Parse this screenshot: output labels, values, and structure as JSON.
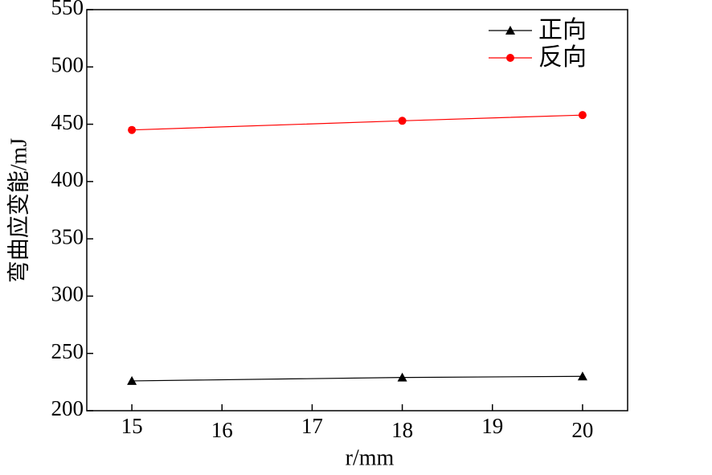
{
  "chart_data": {
    "type": "line",
    "xlabel": "r/mm",
    "ylabel": "弯曲应变能/mJ",
    "x": [
      15,
      18,
      20
    ],
    "series": [
      {
        "name": "正向",
        "color": "#000000",
        "marker": "triangle",
        "values": [
          226,
          229,
          230
        ]
      },
      {
        "name": "反向",
        "color": "#ff0000",
        "marker": "circle",
        "values": [
          445,
          453,
          458
        ]
      }
    ],
    "xlim": [
      14.5,
      20.5
    ],
    "xticks": [
      15,
      16,
      17,
      18,
      19,
      20
    ],
    "ylim": [
      200,
      550
    ],
    "yticks": [
      200,
      250,
      300,
      350,
      400,
      450,
      500,
      550
    ],
    "legend": "upper right"
  }
}
